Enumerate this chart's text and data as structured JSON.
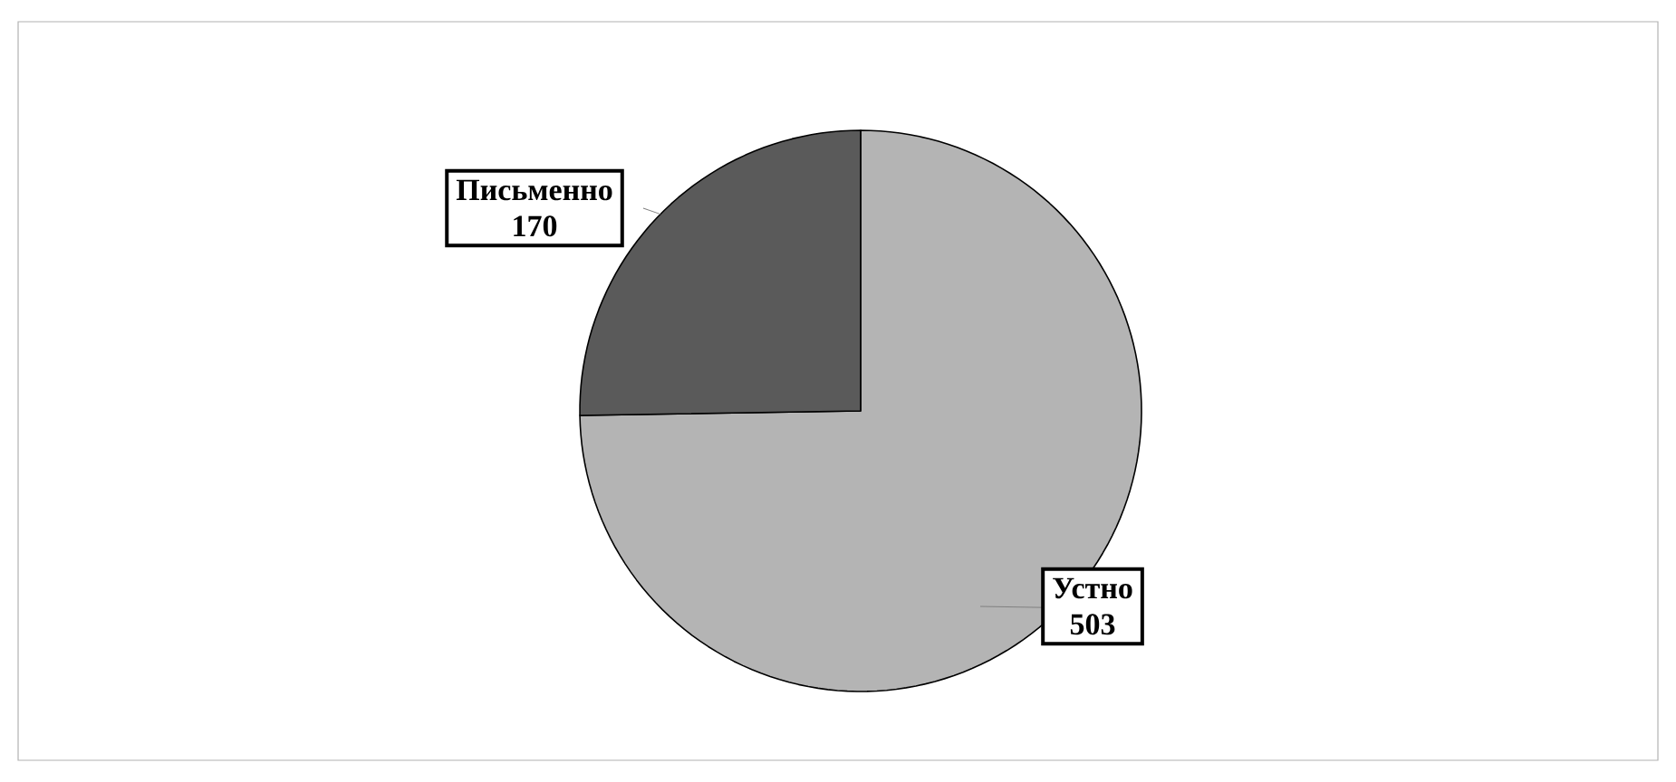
{
  "chart_data": {
    "type": "pie",
    "categories": [
      "Устно",
      "Письменно"
    ],
    "values": [
      503,
      170
    ],
    "colors": [
      "#b4b4b4",
      "#5a5a5a"
    ],
    "value_labels": [
      "503",
      "170"
    ]
  }
}
